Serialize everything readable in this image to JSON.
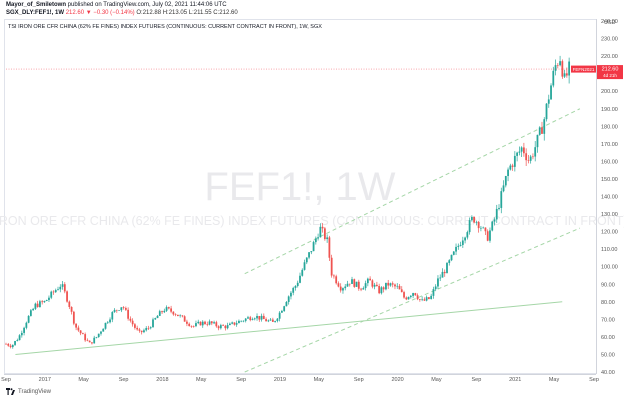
{
  "header": {
    "line1_user": "Mayor_of_Smiletown",
    "line1_rest": " published on TradingView.com, July 02, 2021 11:44:06 UTC",
    "symbol": "SGX_DLY:FEF1!, 1W",
    "change": "212.60 ▼ −0.30 (−0.14%)",
    "ohlc": "O:212.88 H:213.05 L:211.55 C:212.60"
  },
  "series_title": "TSI IRON ORE CFR CHINA (62% FE FINES) INDEX FUTURES (CONTINUOUS: CURRENT CONTRACT IN FRONT), 1W, SGX",
  "watermark": {
    "symbol": "FEF1!, 1W",
    "description": "TSI IRON ORE CFR CHINA (62% FE FINES) INDEX FUTURES (CONTINUOUS: CURRENT CONTRACT IN FRONT)"
  },
  "currency": "USD",
  "footer": {
    "brand": "TradingView"
  },
  "colors": {
    "up": "#26a69a",
    "down": "#ef5350",
    "trendline": "#a5d6a7",
    "channel": "#a5d6a7",
    "price_line": "#f23645",
    "label_bg": "#f23645"
  },
  "chart_data": {
    "type": "candlestick",
    "title": "TSI IRON ORE CFR CHINA (62% FE FINES) INDEX FUTURES (CONTINUOUS: CURRENT CONTRACT IN FRONT), 1W, SGX",
    "ylim": [
      40,
      240
    ],
    "y_ticks": [
      40,
      50,
      60,
      70,
      80,
      90,
      100,
      110,
      120,
      130,
      140,
      150,
      160,
      170,
      180,
      190,
      200,
      210,
      220,
      230,
      240
    ],
    "y_tick_labels": [
      "40.00",
      "50.00",
      "60.00",
      "70.00",
      "80.00",
      "90.00",
      "100.00",
      "110.00",
      "120.00",
      "130.00",
      "140.00",
      "150.00",
      "160.00",
      "170.00",
      "180.00",
      "190.00",
      "200.00",
      "210.00",
      "220.00",
      "230.00",
      "240.00"
    ],
    "x_ticks": [
      {
        "label": "Sep",
        "t": 2016.67
      },
      {
        "label": "2017",
        "t": 2017.0
      },
      {
        "label": "May",
        "t": 2017.33
      },
      {
        "label": "Sep",
        "t": 2017.67
      },
      {
        "label": "2018",
        "t": 2018.0
      },
      {
        "label": "May",
        "t": 2018.33
      },
      {
        "label": "Sep",
        "t": 2018.67
      },
      {
        "label": "2019",
        "t": 2019.0
      },
      {
        "label": "May",
        "t": 2019.33
      },
      {
        "label": "Sep",
        "t": 2019.67
      },
      {
        "label": "2020",
        "t": 2020.0
      },
      {
        "label": "May",
        "t": 2020.33
      },
      {
        "label": "Sep",
        "t": 2020.67
      },
      {
        "label": "2021",
        "t": 2021.0
      },
      {
        "label": "May",
        "t": 2021.33
      },
      {
        "label": "Sep",
        "t": 2021.67
      }
    ],
    "xlim": [
      2016.67,
      2021.67
    ],
    "ohlc_anchors": [
      [
        2016.67,
        56
      ],
      [
        2016.72,
        55
      ],
      [
        2016.78,
        60
      ],
      [
        2016.85,
        70
      ],
      [
        2016.92,
        78
      ],
      [
        2017.0,
        80
      ],
      [
        2017.08,
        86
      ],
      [
        2017.14,
        90
      ],
      [
        2017.2,
        80
      ],
      [
        2017.26,
        66
      ],
      [
        2017.33,
        60
      ],
      [
        2017.38,
        56
      ],
      [
        2017.44,
        60
      ],
      [
        2017.52,
        68
      ],
      [
        2017.58,
        74
      ],
      [
        2017.66,
        78
      ],
      [
        2017.72,
        70
      ],
      [
        2017.8,
        62
      ],
      [
        2017.88,
        65
      ],
      [
        2017.96,
        72
      ],
      [
        2018.02,
        76
      ],
      [
        2018.1,
        74
      ],
      [
        2018.18,
        70
      ],
      [
        2018.26,
        66
      ],
      [
        2018.33,
        68
      ],
      [
        2018.4,
        68
      ],
      [
        2018.48,
        66
      ],
      [
        2018.56,
        66
      ],
      [
        2018.62,
        68
      ],
      [
        2018.7,
        70
      ],
      [
        2018.78,
        72
      ],
      [
        2018.86,
        70
      ],
      [
        2018.94,
        68
      ],
      [
        2019.0,
        74
      ],
      [
        2019.06,
        82
      ],
      [
        2019.14,
        90
      ],
      [
        2019.2,
        100
      ],
      [
        2019.28,
        112
      ],
      [
        2019.34,
        122
      ],
      [
        2019.4,
        115
      ],
      [
        2019.44,
        96
      ],
      [
        2019.52,
        88
      ],
      [
        2019.6,
        92
      ],
      [
        2019.68,
        88
      ],
      [
        2019.76,
        92
      ],
      [
        2019.84,
        86
      ],
      [
        2019.92,
        90
      ],
      [
        2020.0,
        88
      ],
      [
        2020.06,
        82
      ],
      [
        2020.14,
        86
      ],
      [
        2020.2,
        80
      ],
      [
        2020.28,
        82
      ],
      [
        2020.34,
        92
      ],
      [
        2020.42,
        100
      ],
      [
        2020.5,
        110
      ],
      [
        2020.58,
        120
      ],
      [
        2020.64,
        128
      ],
      [
        2020.7,
        124
      ],
      [
        2020.76,
        116
      ],
      [
        2020.82,
        126
      ],
      [
        2020.88,
        140
      ],
      [
        2020.94,
        155
      ],
      [
        2021.0,
        162
      ],
      [
        2021.06,
        168
      ],
      [
        2021.12,
        160
      ],
      [
        2021.18,
        170
      ],
      [
        2021.24,
        182
      ],
      [
        2021.3,
        202
      ],
      [
        2021.34,
        214
      ],
      [
        2021.38,
        220
      ],
      [
        2021.42,
        206
      ],
      [
        2021.46,
        212.6
      ]
    ],
    "last_price": 212.6,
    "last_price_label": "212.60",
    "contract_label": "FEFN2021",
    "countdown_label": "4d 21h",
    "trendline": {
      "from": [
        2016.75,
        50
      ],
      "to": [
        2021.4,
        80
      ]
    },
    "channel_upper": {
      "from": [
        2018.7,
        96
      ],
      "to": [
        2021.55,
        190
      ]
    },
    "channel_lower": {
      "from": [
        2018.7,
        40
      ],
      "to": [
        2021.55,
        122
      ]
    }
  }
}
